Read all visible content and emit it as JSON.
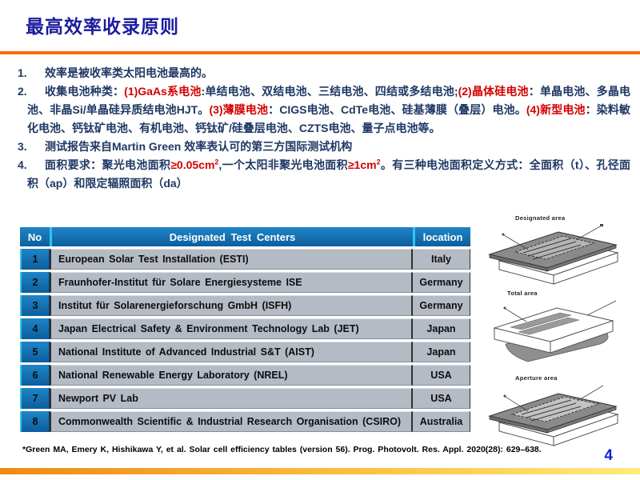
{
  "slide": {
    "title": "最高效率收录原则",
    "page_number": "4",
    "footnote": "*Green MA, Emery K, Hishikawa Y, et al. Solar cell efficiency tables (version 56). Prog. Photovolt. Res. Appl. 2020(28): 629–638."
  },
  "principles": {
    "items": [
      {
        "number": "1.",
        "segments": [
          {
            "t": "效率是被收率类太阳电池最高的。",
            "c": "navy"
          }
        ]
      },
      {
        "number": "2.",
        "segments": [
          {
            "t": "收集电池种类：",
            "c": "navy"
          },
          {
            "t": "(1)GaAs系电池",
            "c": "red"
          },
          {
            "t": ":单结电池、双结电池、三结电池、四结或多结电池;",
            "c": "navy"
          },
          {
            "t": "(2)晶体硅电池",
            "c": "red"
          },
          {
            "t": "：单晶电池、多晶电池、非晶Si/单晶硅异质结电池HJT。",
            "c": "navy"
          },
          {
            "t": "(3)薄膜电池",
            "c": "red"
          },
          {
            "t": "：CIGS电池、CdTe电池、硅基薄膜（叠层）电池。",
            "c": "navy"
          },
          {
            "t": "(4)新型电池",
            "c": "red"
          },
          {
            "t": "：染料敏化电池、钙钛矿电池、有机电池、钙钛矿/硅叠层电池、CZTS电池、量子点电池等。",
            "c": "navy"
          }
        ]
      },
      {
        "number": "3.",
        "segments": [
          {
            "t": "测试报告来自Martin Green 效率表认可的第三方国际测试机构",
            "c": "navy"
          }
        ]
      },
      {
        "number": "4.",
        "segments": [
          {
            "t": "面积要求：聚光电池面积",
            "c": "navy"
          },
          {
            "t": "≥0.05cm",
            "c": "red"
          },
          {
            "t": "2",
            "c": "red",
            "sup": true
          },
          {
            "t": ",一个太阳非聚光电池面积",
            "c": "navy"
          },
          {
            "t": "≥1cm",
            "c": "red"
          },
          {
            "t": "2",
            "c": "red",
            "sup": true
          },
          {
            "t": "。有三种电池面积定义方式：全面积（t）、孔径面积（ap）和限定辐照面积（da）",
            "c": "navy"
          }
        ]
      }
    ]
  },
  "table": {
    "headers": [
      "No",
      "Designated Test Centers",
      "location"
    ],
    "rows": [
      {
        "no": "1",
        "center": "European Solar Test Installation (ESTI)",
        "location": "Italy"
      },
      {
        "no": "2",
        "center": "Fraunhofer-Institut für Solare Energiesysteme ISE",
        "location": "Germany"
      },
      {
        "no": "3",
        "center": "Institut für Solarenergieforschung GmbH (ISFH)",
        "location": "Germany"
      },
      {
        "no": "4",
        "center": "Japan Electrical Safety & Environment Technology Lab (JET)",
        "location": "Japan"
      },
      {
        "no": "5",
        "center": "National Institute of Advanced Industrial S&T (AIST)",
        "location": "Japan"
      },
      {
        "no": "6",
        "center": "National Renewable Energy Laboratory (NREL)",
        "location": "USA"
      },
      {
        "no": "7",
        "center": "Newport PV Lab",
        "location": "USA"
      },
      {
        "no": "8",
        "center": "Commonwealth Scientific & Industrial Research Organisation (CSIRO)",
        "location": "Australia"
      }
    ]
  },
  "diagrams": [
    {
      "label": "Designated area"
    },
    {
      "label": "Total area"
    },
    {
      "label": "Aperture area"
    }
  ],
  "colors": {
    "title_blue": "#1C1C9E",
    "accent_orange": "#FF6900",
    "body_navy": "#1F3864",
    "highlight_red": "#D40000",
    "table_header_blue": "#1272B8",
    "table_row_gray": "#B5BBC5",
    "separator_cyan": "#35C3EC",
    "footer_gradient_start": "#EF8A12",
    "footer_gradient_end": "#FFEB7E",
    "page_number_blue": "#1021DD"
  }
}
